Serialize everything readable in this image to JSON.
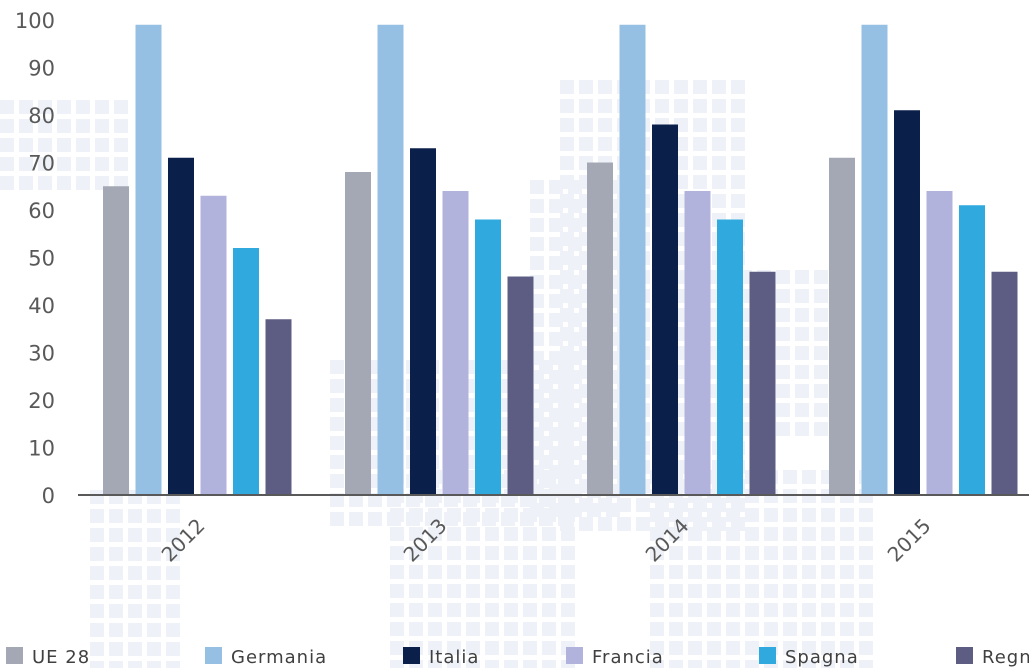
{
  "chart_data": {
    "type": "bar",
    "categories": [
      "2012",
      "2013",
      "2014",
      "2015"
    ],
    "series": [
      {
        "name": "UE 28",
        "color": "#a3a8b4",
        "values": [
          65,
          68,
          70,
          71
        ]
      },
      {
        "name": "Germania",
        "color": "#95c0e3",
        "values": [
          99,
          99,
          99,
          99
        ]
      },
      {
        "name": "Italia",
        "color": "#0b1f4b",
        "values": [
          71,
          73,
          78,
          81
        ]
      },
      {
        "name": "Francia",
        "color": "#b1b3dd",
        "values": [
          63,
          64,
          64,
          64
        ]
      },
      {
        "name": "Spagna",
        "color": "#2fa9de",
        "values": [
          52,
          58,
          58,
          61
        ]
      },
      {
        "name": "Regno Unito",
        "color": "#5d5d83",
        "values": [
          37,
          46,
          47,
          47
        ]
      }
    ],
    "yticks": [
      "0",
      "10",
      "20",
      "30",
      "40",
      "50",
      "60",
      "70",
      "80",
      "90",
      "100"
    ],
    "ylim": [
      0,
      100
    ],
    "grid": false,
    "legend_position": "bottom"
  }
}
